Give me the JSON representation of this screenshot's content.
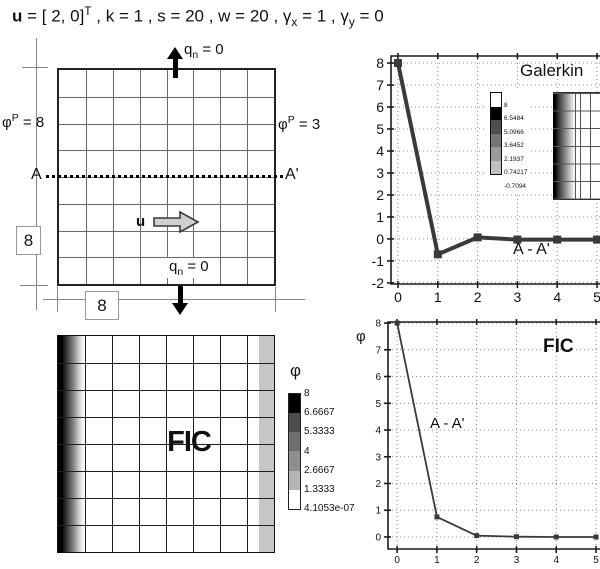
{
  "title": {
    "u": "u",
    "vector": " = [ 2, 0]",
    "transpose": "T",
    "params": " , k = 1 , s = 20 , w = 20 , ",
    "gamma_x": "γ",
    "gamma_x_sub": "x",
    "gamma_x_eq": " = 1 , ",
    "gamma_y": "γ",
    "gamma_y_sub": "y",
    "gamma_y_eq": " = 0"
  },
  "mesh": {
    "rows": 8,
    "cols": 8,
    "top_flux": {
      "q": "q",
      "sub": "n",
      "eq": " = 0"
    },
    "bottom_flux": {
      "q": "q",
      "sub": "n",
      "eq": " = 0"
    },
    "left_bc": {
      "phi": "φ",
      "sup": "P",
      "eq": " = 8"
    },
    "right_bc": {
      "phi": "φ",
      "sup": "P",
      "eq": " = 3"
    },
    "section_a": "A",
    "section_a_prime": "A'",
    "velocity": "u",
    "height_dim": "8",
    "width_dim": "8"
  },
  "chart_data": [
    {
      "type": "line",
      "title": "Galerkin",
      "annotation": "A - A'",
      "x": [
        0,
        1,
        2,
        3,
        4,
        5
      ],
      "y": [
        8,
        -0.7,
        0.07,
        -0.03,
        -0.03,
        -0.03
      ],
      "xticks": [
        0,
        1,
        2,
        3,
        4,
        5
      ],
      "yticks": [
        -2,
        -1,
        0,
        1,
        2,
        3,
        4,
        5,
        6,
        7,
        8
      ],
      "xlim": [
        -0.176,
        5.075
      ],
      "ylim": [
        -2.05,
        8.32
      ],
      "grid": true,
      "legend_position": "inset",
      "line_color": "#3a3a3a",
      "legend_values": [
        "8",
        "6.5484",
        "5.0966",
        "3.6452",
        "2.1937",
        "0.74217",
        "-0.7094"
      ],
      "legend_colors": [
        "#ffffff",
        "#000000",
        "#4f4f4f",
        "#757575",
        "#9a9a9a",
        "#c0c0c0"
      ]
    },
    {
      "type": "line",
      "title": "FIC",
      "ylabel": "φ",
      "annotation": "A - A'",
      "x": [
        0,
        1,
        2,
        3,
        4,
        5
      ],
      "y": [
        8,
        0.75,
        0.05,
        0.01,
        0,
        0
      ],
      "xticks": [
        0,
        1,
        2,
        3,
        4,
        5
      ],
      "yticks": [
        0,
        1,
        2,
        3,
        4,
        5,
        6,
        7,
        8
      ],
      "xlim": [
        -0.23,
        5.1
      ],
      "ylim": [
        -0.45,
        8.04
      ],
      "grid": true,
      "line_color": "#3a3a3a"
    },
    {
      "type": "heatmap",
      "label": "FIC",
      "rows": 8,
      "cols": 8,
      "colorbar_title": "φ",
      "colorbar_values": [
        "8",
        "6.6667",
        "5.3333",
        "4",
        "2.6667",
        "1.3333",
        "4.1053e-07"
      ],
      "colorbar_colors": [
        "#000000",
        "#4d4d4d",
        "#6e6e6e",
        "#8f8f8f",
        "#b5b5b5",
        "#ffffff"
      ]
    }
  ]
}
